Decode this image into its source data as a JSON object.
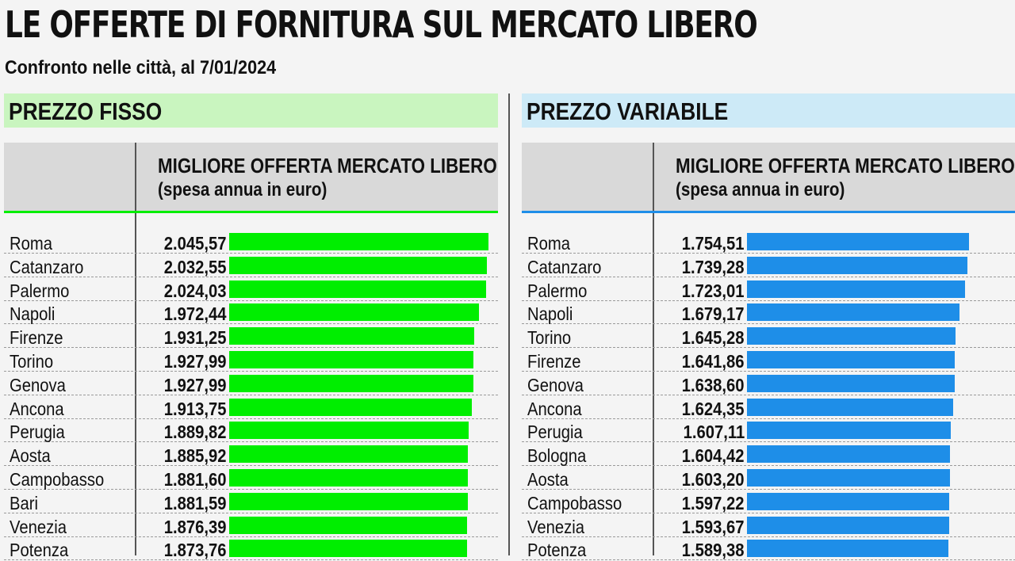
{
  "title": "LE OFFERTE DI FORNITURA SUL MERCATO LIBERO",
  "subtitle": "Confronto nelle città, al 7/01/2024",
  "colors": {
    "fixed_bar": "#00ee00",
    "fixed_band": "#c9f5bf",
    "variable_bar": "#1e8ee8",
    "variable_band": "#cdeaf7",
    "header_bg": "#d9d9d9"
  },
  "chart_data": [
    {
      "type": "bar",
      "orientation": "horizontal",
      "title": "PREZZO FISSO",
      "column_header": [
        "MIGLIORE OFFERTA MERCATO LIBERO",
        "(spesa annua in euro)"
      ],
      "categories": [
        "Roma",
        "Catanzaro",
        "Palermo",
        "Napoli",
        "Firenze",
        "Torino",
        "Genova",
        "Ancona",
        "Perugia",
        "Aosta",
        "Campobasso",
        "Bari",
        "Venezia",
        "Potenza"
      ],
      "values": [
        2045.57,
        2032.55,
        2024.03,
        1972.44,
        1931.25,
        1927.99,
        1927.99,
        1913.75,
        1889.82,
        1885.92,
        1881.6,
        1881.59,
        1876.39,
        1873.76
      ],
      "value_labels": [
        "2.045,57",
        "2.032,55",
        "2.024,03",
        "1.972,44",
        "1.931,25",
        "1.927,99",
        "1.927,99",
        "1.913,75",
        "1.889,82",
        "1.885,92",
        "1.881,60",
        "1.881,59",
        "1.876,39",
        "1.873,76"
      ]
    },
    {
      "type": "bar",
      "orientation": "horizontal",
      "title": "PREZZO VARIABILE",
      "column_header": [
        "MIGLIORE OFFERTA MERCATO LIBERO",
        "(spesa annua in euro)"
      ],
      "categories": [
        "Roma",
        "Catanzaro",
        "Palermo",
        "Napoli",
        "Torino",
        "Firenze",
        "Genova",
        "Ancona",
        "Perugia",
        "Bologna",
        "Aosta",
        "Campobasso",
        "Venezia",
        "Potenza"
      ],
      "values": [
        1754.51,
        1739.28,
        1723.01,
        1679.17,
        1645.28,
        1641.86,
        1638.6,
        1624.35,
        1607.11,
        1604.42,
        1603.2,
        1597.22,
        1593.67,
        1589.38
      ],
      "value_labels": [
        "1.754,51",
        "1.739,28",
        "1.723,01",
        "1.679,17",
        "1.645,28",
        "1.641,86",
        "1.638,60",
        "1.624,35",
        "1.607,11",
        "1.604,42",
        "1.603,20",
        "1.597,22",
        "1.593,67",
        "1.589,38"
      ]
    }
  ]
}
